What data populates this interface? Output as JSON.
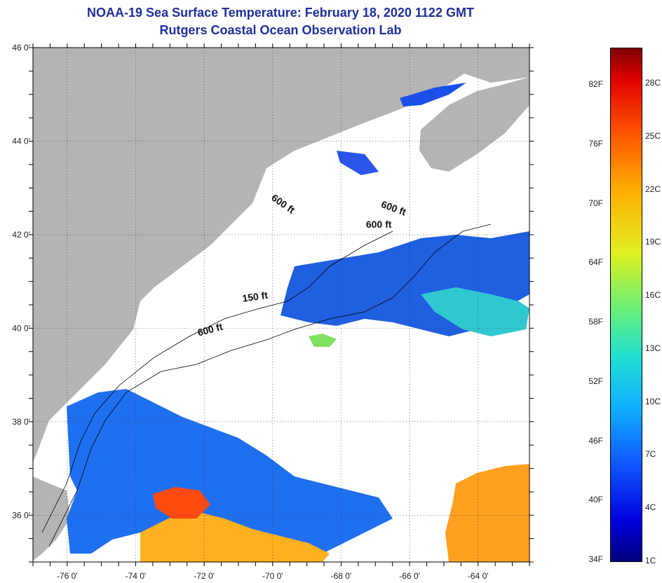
{
  "header": {
    "title": "NOAA-19 Sea Surface Temperature:  February 18, 2020 1122 GMT",
    "subtitle": "Rutgers Coastal Ocean Observation Lab"
  },
  "map": {
    "lon_range": [
      -77,
      -62.5
    ],
    "lat_range": [
      35,
      46
    ],
    "lon_ticks": [
      {
        "value": -76,
        "label": "-76 0'"
      },
      {
        "value": -74,
        "label": "-74 0'"
      },
      {
        "value": -72,
        "label": "-72 0'"
      },
      {
        "value": -70,
        "label": "-70 0'"
      },
      {
        "value": -68,
        "label": "-68 0'"
      },
      {
        "value": -66,
        "label": "-66 0'"
      },
      {
        "value": -64,
        "label": "-64 0'"
      }
    ],
    "lat_ticks": [
      {
        "value": 46,
        "label": "46 0'"
      },
      {
        "value": 44,
        "label": "44 0'"
      },
      {
        "value": 42,
        "label": "42 0'"
      },
      {
        "value": 40,
        "label": "40 0'"
      },
      {
        "value": 38,
        "label": "38 0'"
      },
      {
        "value": 36,
        "label": "36 0'"
      }
    ],
    "contour_labels": [
      {
        "text": "600 ft",
        "lon": -69.75,
        "lat": 42.6,
        "angle": 35
      },
      {
        "text": "600 ft",
        "lon": -66.5,
        "lat": 42.5,
        "angle": 20
      },
      {
        "text": "600 ft",
        "lon": -66.9,
        "lat": 42.15,
        "angle": 0
      },
      {
        "text": "150 ft",
        "lon": -70.5,
        "lat": 40.6,
        "angle": -8
      },
      {
        "text": "600 ft",
        "lon": -71.8,
        "lat": 39.9,
        "angle": -15
      }
    ],
    "land_color": "#b4b4b4",
    "cloud_color": "#ffffff"
  },
  "colorbar": {
    "fahrenheit": [
      "82F",
      "76F",
      "70F",
      "64F",
      "58F",
      "52F",
      "46F",
      "40F",
      "34F"
    ],
    "celsius": [
      "28C",
      "25C",
      "22C",
      "19C",
      "16C",
      "13C",
      "10C",
      "7C",
      "4C",
      "1C"
    ]
  }
}
